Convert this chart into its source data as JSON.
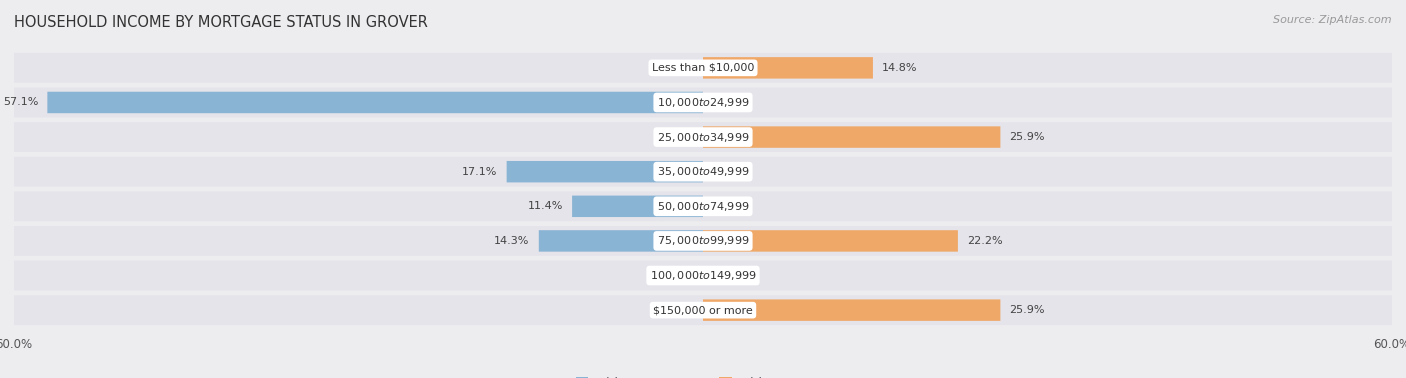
{
  "title": "HOUSEHOLD INCOME BY MORTGAGE STATUS IN GROVER",
  "source": "Source: ZipAtlas.com",
  "categories": [
    "Less than $10,000",
    "$10,000 to $24,999",
    "$25,000 to $34,999",
    "$35,000 to $49,999",
    "$50,000 to $74,999",
    "$75,000 to $99,999",
    "$100,000 to $149,999",
    "$150,000 or more"
  ],
  "without_mortgage": [
    0.0,
    57.1,
    0.0,
    17.1,
    11.4,
    14.3,
    0.0,
    0.0
  ],
  "with_mortgage": [
    14.8,
    0.0,
    25.9,
    0.0,
    0.0,
    22.2,
    0.0,
    25.9
  ],
  "color_without": "#8ab4d4",
  "color_with": "#f0a868",
  "color_without_light": "#c5d9eb",
  "color_with_light": "#f7d0a8",
  "axis_limit": 60.0,
  "bg_color": "#ededf0",
  "bar_bg_color": "#e4e4ea",
  "title_fontsize": 10.5,
  "source_fontsize": 8,
  "legend_fontsize": 9,
  "axis_label_fontsize": 8.5,
  "bar_label_fontsize": 8,
  "category_fontsize": 8
}
